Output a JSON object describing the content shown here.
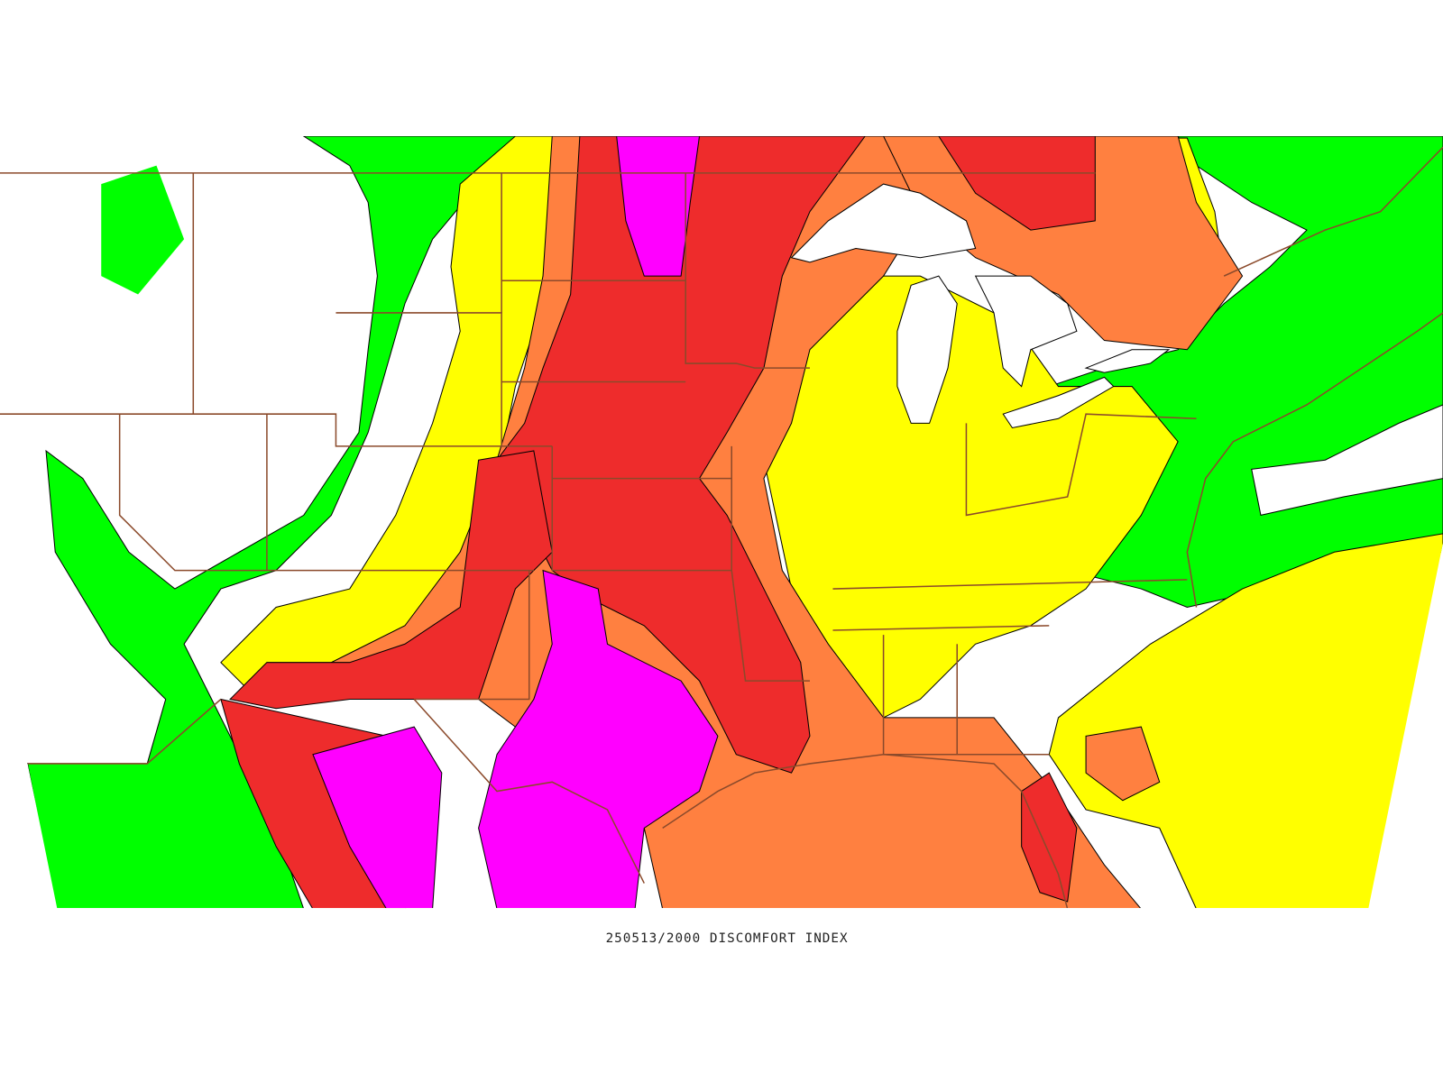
{
  "map": {
    "caption": "250513/2000 DISCOMFORT INDEX"
  }
}
